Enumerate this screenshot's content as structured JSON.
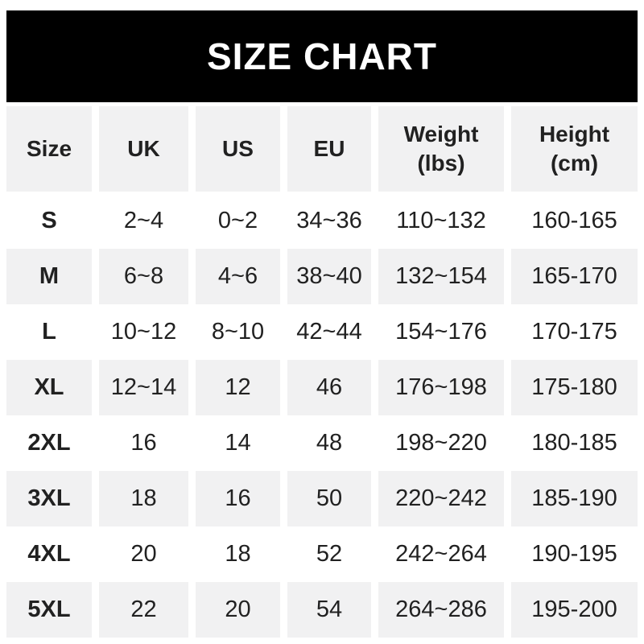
{
  "title": "SIZE CHART",
  "colors": {
    "title_bar_bg": "#000000",
    "title_text": "#ffffff",
    "row_alt_bg": "#f1f1f2",
    "row_bg": "#ffffff",
    "text": "#212121"
  },
  "chart_data": {
    "type": "table",
    "title": "SIZE CHART",
    "columns": [
      {
        "label": "Size",
        "sub": ""
      },
      {
        "label": "UK",
        "sub": ""
      },
      {
        "label": "US",
        "sub": ""
      },
      {
        "label": "EU",
        "sub": ""
      },
      {
        "label": "Weight",
        "sub": "(lbs)"
      },
      {
        "label": "Height",
        "sub": "(cm)"
      }
    ],
    "rows": [
      {
        "size": "S",
        "uk": "2~4",
        "us": "0~2",
        "eu": "34~36",
        "weight": "110~132",
        "height": "160-165"
      },
      {
        "size": "M",
        "uk": "6~8",
        "us": "4~6",
        "eu": "38~40",
        "weight": "132~154",
        "height": "165-170"
      },
      {
        "size": "L",
        "uk": "10~12",
        "us": "8~10",
        "eu": "42~44",
        "weight": "154~176",
        "height": "170-175"
      },
      {
        "size": "XL",
        "uk": "12~14",
        "us": "12",
        "eu": "46",
        "weight": "176~198",
        "height": "175-180"
      },
      {
        "size": "2XL",
        "uk": "16",
        "us": "14",
        "eu": "48",
        "weight": "198~220",
        "height": "180-185"
      },
      {
        "size": "3XL",
        "uk": "18",
        "us": "16",
        "eu": "50",
        "weight": "220~242",
        "height": "185-190"
      },
      {
        "size": "4XL",
        "uk": "20",
        "us": "18",
        "eu": "52",
        "weight": "242~264",
        "height": "190-195"
      },
      {
        "size": "5XL",
        "uk": "22",
        "us": "20",
        "eu": "54",
        "weight": "264~286",
        "height": "195-200"
      }
    ]
  }
}
